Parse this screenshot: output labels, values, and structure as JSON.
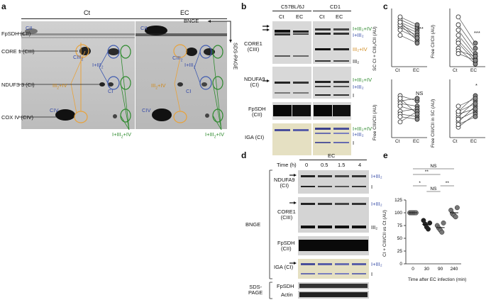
{
  "panels": {
    "a": "a",
    "b": "b",
    "c": "c",
    "d": "d",
    "e": "e"
  },
  "panel_a": {
    "ct": "Ct",
    "ec": "EC",
    "bnge": "BNGE",
    "sds": "SDS-PAGE",
    "fpsdh": "FpSDH (CII)",
    "core1": "CORE 1 (CIII)",
    "ndufs3": "NDUFS 3 (CI)",
    "cox4": "COX IV (CIV)",
    "cii": "CII",
    "ciii2": "CIII",
    "ciii2_sub": "2",
    "ci": "CI",
    "civ": "CIV",
    "i_iii2": "I+III",
    "i_iii2_sub": "2",
    "iii2_iv": "III",
    "iii2_iv_sub": "2",
    "iii2_iv_tail": "+IV",
    "i_iii2_iv": "I+III",
    "i_iii2_iv_sub": "2",
    "i_iii2_iv_tail": "+IV"
  },
  "panel_b": {
    "strain1": "C57BL/6J",
    "strain2": "CD1",
    "ct1": "Ct",
    "ec1": "EC",
    "ct2": "Ct",
    "ec2": "EC",
    "core1": "CORE1",
    "core1_b": "(CIII)",
    "ndufa9": "NDUFA9",
    "ndufa9_b": "(CI)",
    "fpsdh": "FpSDH",
    "fpsdh_b": "(CII)",
    "iga": "IGA (CI)",
    "r_i_iii2_iv": "I+III₂+IV",
    "r_i_iii2": "I+III₂",
    "r_iii2_iv": "III₂+IV",
    "r_iii2": "III₂",
    "r_i": "I"
  },
  "panel_c": {
    "y1": "SC CI + CIII₂/CII (AU)",
    "y2": "Free CI/CII (AU)",
    "y3": "Free CIII/CII (AU)",
    "y4": "Free CIII/CII in SC (AU)",
    "x_ct": "Ct",
    "x_ec": "EC",
    "sig1": "***",
    "sig2": "***",
    "sig3": "NS",
    "sig4": "*"
  },
  "panel_d": {
    "ec": "EC",
    "time": "Time (h)",
    "times": [
      "0",
      "0.5",
      "1.5",
      "4"
    ],
    "bnge": "BNGE",
    "sds": "SDS-\nPAGE",
    "ndufa9": "NDUFA9",
    "ndufa9_b": "(CI)",
    "core1": "CORE1",
    "core1_b": "(CIII)",
    "fpsdh": "FpSDH",
    "fpsdh_b": "(CII)",
    "iga": "IGA (CI)",
    "fpsdh2": "FpSDH",
    "actin": "Actin",
    "r_i_iii2": "I+III₂",
    "r_i": "I",
    "r_iii2": "III₂"
  },
  "chart_data": [
    {
      "type": "scatter",
      "panel": "e",
      "ylabel": "CI + CIII/CII vs Ct (AU)",
      "xlabel": "Time after EC infection (min)",
      "categories": [
        "0",
        "30",
        "90",
        "240"
      ],
      "ylim": [
        0,
        125
      ],
      "yticks": [
        0,
        25,
        50,
        75,
        100,
        125
      ],
      "values": [
        [
          100,
          100,
          100,
          100,
          100
        ],
        [
          85,
          78,
          72,
          68,
          80
        ],
        [
          75,
          70,
          66,
          62,
          80
        ],
        [
          105,
          98,
          95,
          92,
          110
        ]
      ],
      "means": [
        100,
        77,
        71,
        100
      ],
      "annotations": [
        {
          "text": "NS",
          "from": "0",
          "to": "240"
        },
        {
          "text": "**",
          "from": "0",
          "to": "90"
        },
        {
          "text": "*",
          "from": "0",
          "to": "30"
        },
        {
          "text": "NS",
          "from": "30",
          "to": "90"
        },
        {
          "text": "**",
          "from": "90",
          "to": "240"
        }
      ],
      "colors": [
        "#777777",
        "#222222",
        "#777777",
        "#777777"
      ]
    }
  ]
}
